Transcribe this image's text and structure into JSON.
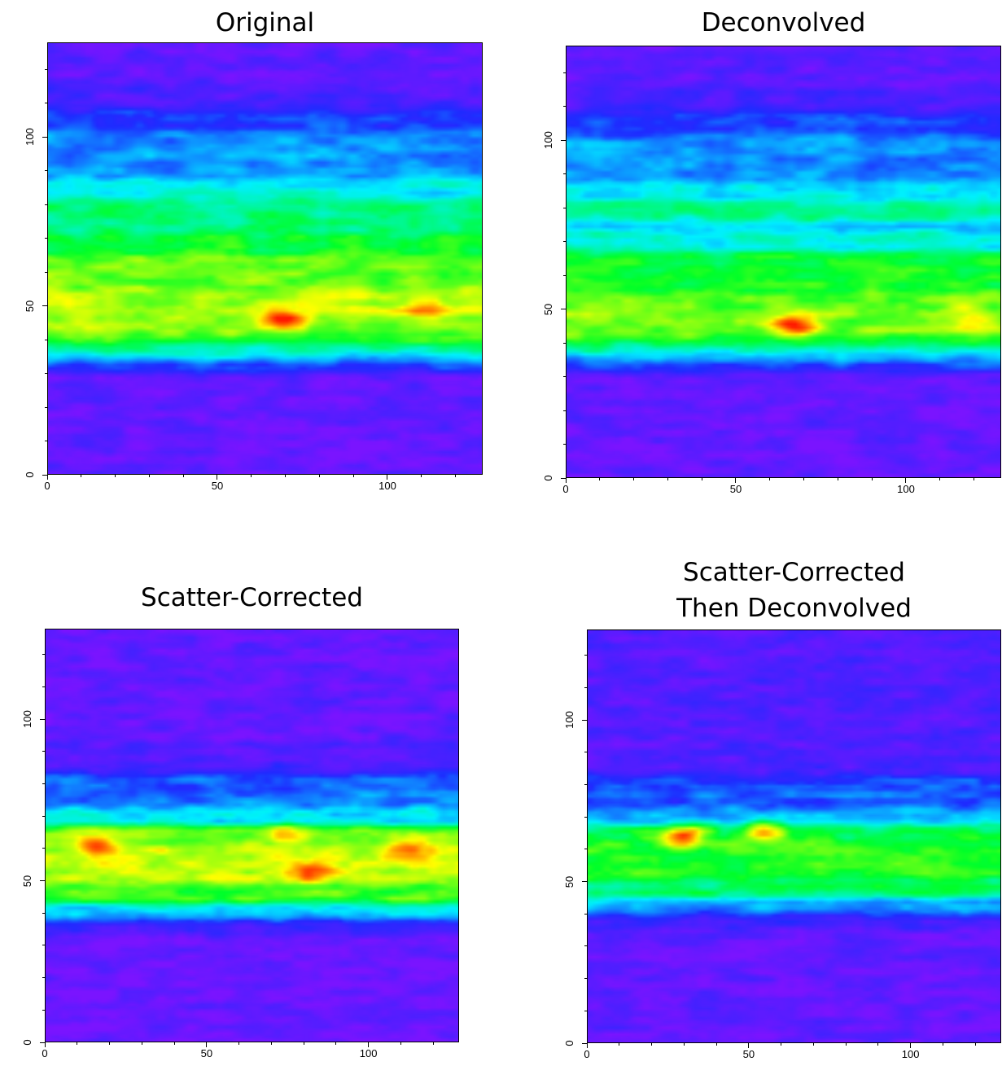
{
  "chart_data": [
    {
      "type": "heatmap",
      "title": "Original",
      "xlabel": "",
      "ylabel": "",
      "xlim": [
        0,
        128
      ],
      "ylim": [
        0,
        128
      ],
      "xticks": [
        "0",
        "50",
        "100"
      ],
      "yticks": [
        "0",
        "50",
        "100"
      ],
      "colormap": [
        "#7a14ff",
        "#1e2bff",
        "#00f0ff",
        "#00ff28",
        "#ffff00",
        "#ff1a00"
      ],
      "bands": [
        {
          "y_from": 0,
          "y_to": 33,
          "intensity": 0.05
        },
        {
          "y_from": 33,
          "y_to": 36,
          "intensity": 0.35
        },
        {
          "y_from": 36,
          "y_to": 45,
          "intensity": 0.65
        },
        {
          "y_from": 45,
          "y_to": 52,
          "intensity": 0.78
        },
        {
          "y_from": 52,
          "y_to": 68,
          "intensity": 0.68
        },
        {
          "y_from": 68,
          "y_to": 85,
          "intensity": 0.52
        },
        {
          "y_from": 85,
          "y_to": 105,
          "intensity": 0.3
        },
        {
          "y_from": 105,
          "y_to": 113,
          "intensity": 0.14
        },
        {
          "y_from": 113,
          "y_to": 128,
          "intensity": 0.06
        }
      ],
      "hotspots": [
        {
          "x": 69,
          "y": 46,
          "intensity": 1.0
        },
        {
          "x": 112,
          "y": 49,
          "intensity": 0.9
        }
      ]
    },
    {
      "type": "heatmap",
      "title": "Deconvolved",
      "xlabel": "",
      "ylabel": "",
      "xlim": [
        0,
        128
      ],
      "ylim": [
        0,
        128
      ],
      "xticks": [
        "0",
        "50",
        "100"
      ],
      "yticks": [
        "0",
        "50",
        "100"
      ],
      "colormap": [
        "#7a14ff",
        "#1e2bff",
        "#00f0ff",
        "#00ff28",
        "#ffff00",
        "#ff1a00"
      ],
      "bands": [
        {
          "y_from": 0,
          "y_to": 34,
          "intensity": 0.05
        },
        {
          "y_from": 34,
          "y_to": 37,
          "intensity": 0.35
        },
        {
          "y_from": 37,
          "y_to": 45,
          "intensity": 0.62
        },
        {
          "y_from": 45,
          "y_to": 52,
          "intensity": 0.75
        },
        {
          "y_from": 52,
          "y_to": 70,
          "intensity": 0.6
        },
        {
          "y_from": 70,
          "y_to": 73,
          "intensity": 0.25
        },
        {
          "y_from": 73,
          "y_to": 85,
          "intensity": 0.5
        },
        {
          "y_from": 85,
          "y_to": 105,
          "intensity": 0.3
        },
        {
          "y_from": 105,
          "y_to": 113,
          "intensity": 0.14
        },
        {
          "y_from": 113,
          "y_to": 128,
          "intensity": 0.06
        }
      ],
      "hotspots": [
        {
          "x": 67,
          "y": 45,
          "intensity": 1.0
        },
        {
          "x": 120,
          "y": 47,
          "intensity": 0.85
        }
      ]
    },
    {
      "type": "heatmap",
      "title": "Scatter-Corrected",
      "xlabel": "",
      "ylabel": "",
      "xlim": [
        0,
        128
      ],
      "ylim": [
        0,
        128
      ],
      "xticks": [
        "0",
        "50",
        "100"
      ],
      "yticks": [
        "0",
        "50",
        "100"
      ],
      "colormap": [
        "#7a14ff",
        "#1e2bff",
        "#00f0ff",
        "#00ff28",
        "#ffff00",
        "#ff1a00"
      ],
      "bands": [
        {
          "y_from": 0,
          "y_to": 36,
          "intensity": 0.04
        },
        {
          "y_from": 36,
          "y_to": 40,
          "intensity": 0.22
        },
        {
          "y_from": 40,
          "y_to": 46,
          "intensity": 0.55
        },
        {
          "y_from": 46,
          "y_to": 64,
          "intensity": 0.76
        },
        {
          "y_from": 64,
          "y_to": 70,
          "intensity": 0.6
        },
        {
          "y_from": 70,
          "y_to": 74,
          "intensity": 0.18
        },
        {
          "y_from": 74,
          "y_to": 80,
          "intensity": 0.38
        },
        {
          "y_from": 80,
          "y_to": 90,
          "intensity": 0.12
        },
        {
          "y_from": 90,
          "y_to": 128,
          "intensity": 0.05
        }
      ],
      "hotspots": [
        {
          "x": 82,
          "y": 53,
          "intensity": 1.0
        },
        {
          "x": 15,
          "y": 61,
          "intensity": 0.95
        },
        {
          "x": 75,
          "y": 64,
          "intensity": 0.9
        },
        {
          "x": 112,
          "y": 60,
          "intensity": 0.9
        }
      ]
    },
    {
      "type": "heatmap",
      "title": "Scatter-Corrected",
      "subtitle": "Then Deconvolved",
      "xlabel": "",
      "ylabel": "",
      "xlim": [
        0,
        128
      ],
      "ylim": [
        0,
        128
      ],
      "xticks": [
        "0",
        "50",
        "100"
      ],
      "yticks": [
        "0",
        "50",
        "100"
      ],
      "colormap": [
        "#7a14ff",
        "#1e2bff",
        "#00f0ff",
        "#00ff28",
        "#ffff00",
        "#ff1a00"
      ],
      "bands": [
        {
          "y_from": 0,
          "y_to": 38,
          "intensity": 0.05
        },
        {
          "y_from": 38,
          "y_to": 42,
          "intensity": 0.22
        },
        {
          "y_from": 42,
          "y_to": 48,
          "intensity": 0.45
        },
        {
          "y_from": 48,
          "y_to": 66,
          "intensity": 0.62
        },
        {
          "y_from": 66,
          "y_to": 70,
          "intensity": 0.5
        },
        {
          "y_from": 70,
          "y_to": 74,
          "intensity": 0.12
        },
        {
          "y_from": 74,
          "y_to": 80,
          "intensity": 0.36
        },
        {
          "y_from": 80,
          "y_to": 90,
          "intensity": 0.1
        },
        {
          "y_from": 90,
          "y_to": 128,
          "intensity": 0.08
        }
      ],
      "hotspots": [
        {
          "x": 30,
          "y": 64,
          "intensity": 0.95
        },
        {
          "x": 55,
          "y": 65,
          "intensity": 0.9
        }
      ]
    }
  ]
}
